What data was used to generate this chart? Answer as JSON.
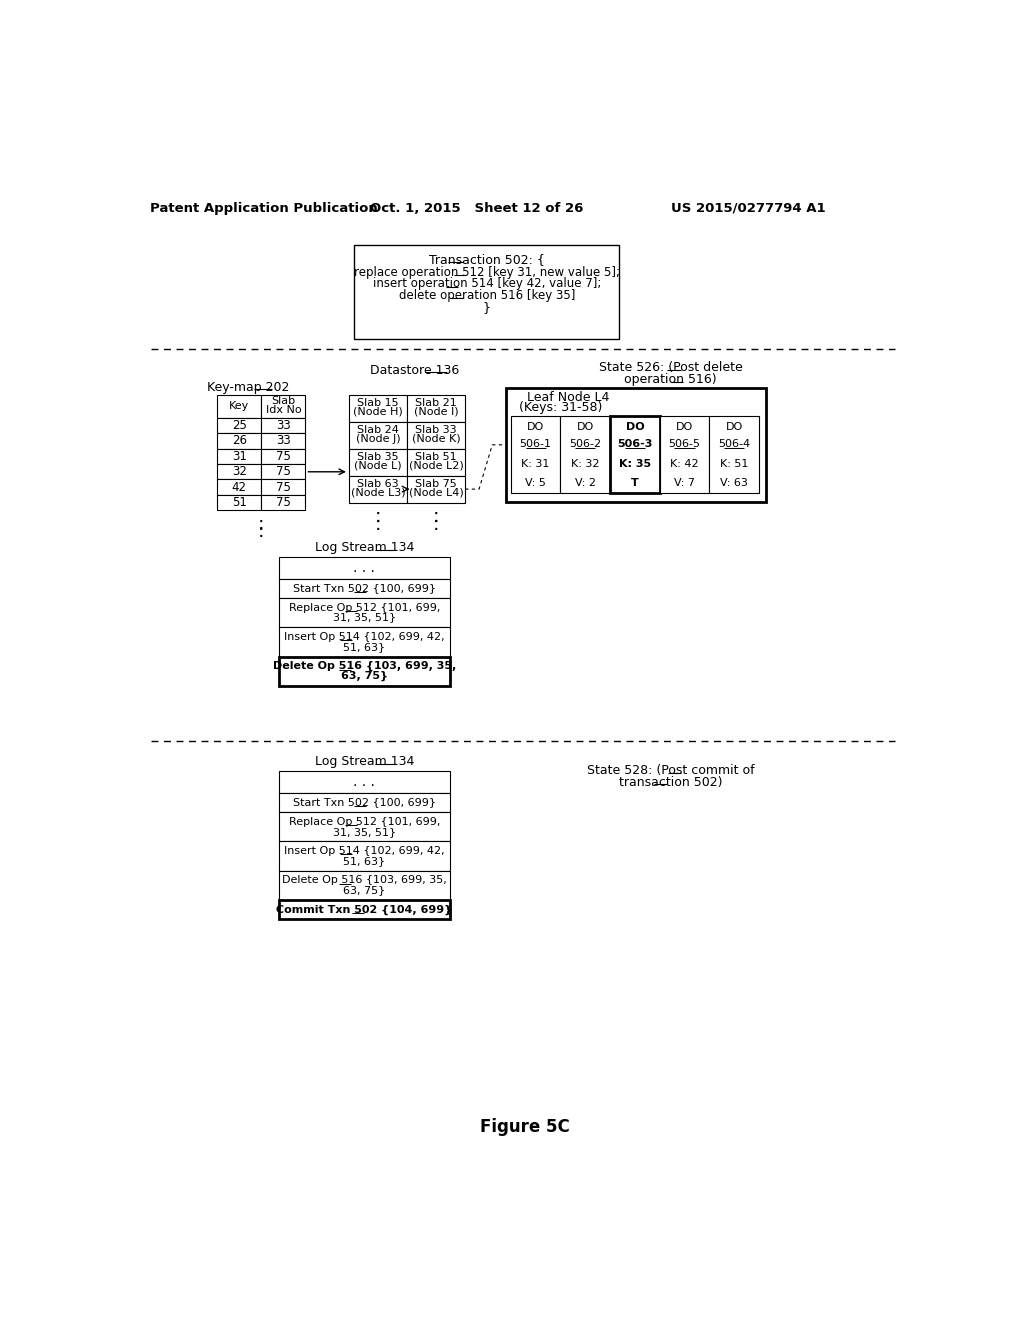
{
  "title_left": "Patent Application Publication",
  "title_mid": "Oct. 1, 2015   Sheet 12 of 26",
  "title_right": "US 2015/0277794 A1",
  "figure_label": "Figure 5C",
  "bg_color": "#ffffff"
}
